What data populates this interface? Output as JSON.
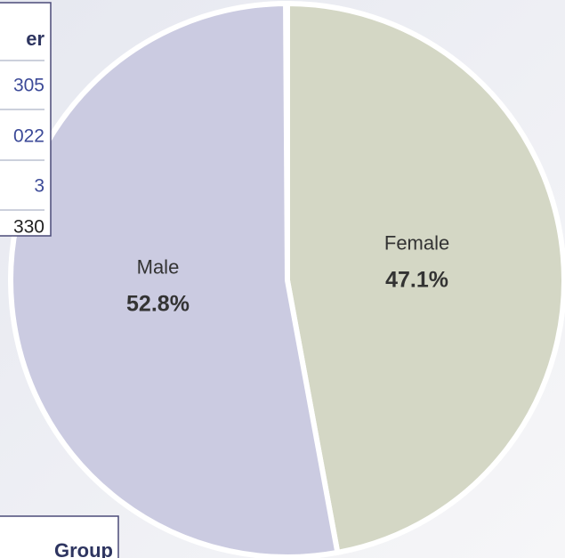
{
  "chart_data": {
    "type": "pie",
    "categories": [
      "Female",
      "Male"
    ],
    "values": [
      47.1,
      52.8
    ],
    "value_labels": [
      "47.1%",
      "52.8%"
    ],
    "colors": [
      "#d4d7c5",
      "#cbcbe1"
    ]
  },
  "table": {
    "header": "er",
    "rows": [
      "305",
      "022",
      "3",
      "330"
    ]
  },
  "group_table": {
    "header": "Group"
  }
}
